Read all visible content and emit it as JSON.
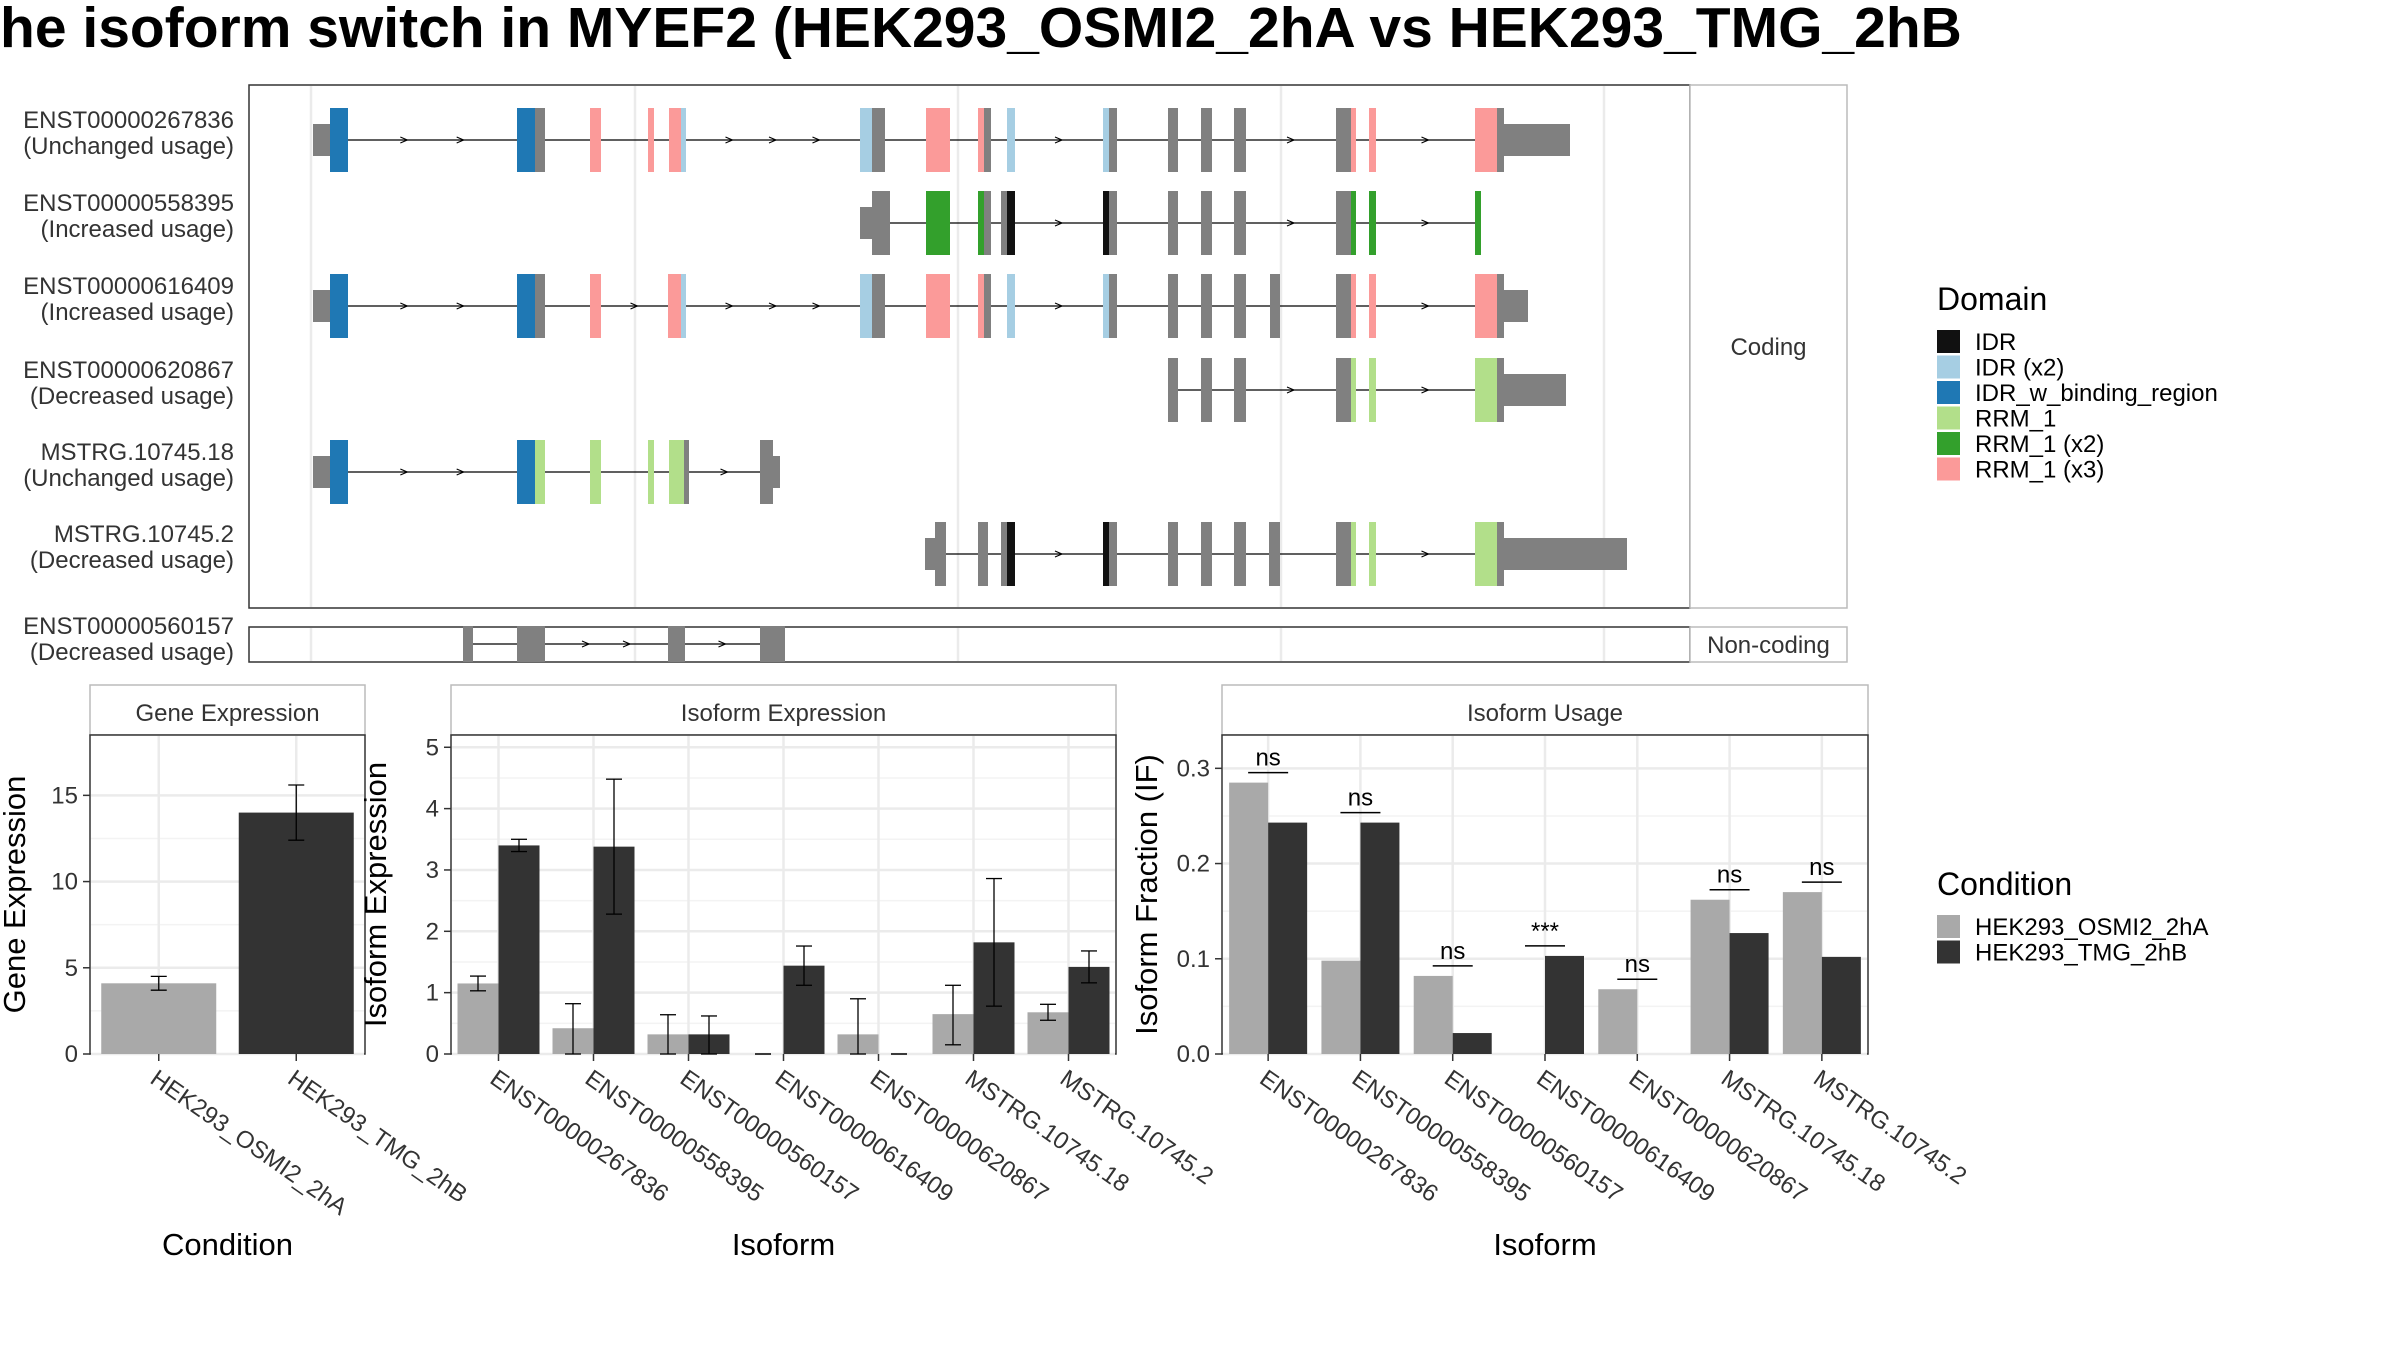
{
  "title": "he isoform switch in MYEF2 (HEK293_OSMI2_2hA vs HEK293_TMG_2hB",
  "colors": {
    "condition_a": "#a9a9a9",
    "condition_b": "#333333",
    "intron": "#000000",
    "utr": "#808080",
    "panel_border": "#333333",
    "strip_fill": "#ffffff",
    "grid": "#ebebeb"
  },
  "structure": {
    "strip_labels": [
      "Coding",
      "Non-coding"
    ],
    "domain_legend": {
      "title": "Domain",
      "items": [
        {
          "label": "IDR",
          "color": "#111111"
        },
        {
          "label": "IDR (x2)",
          "color": "#a6cee3"
        },
        {
          "label": "IDR_w_binding_region",
          "color": "#1f78b4"
        },
        {
          "label": "RRM_1",
          "color": "#b2df8a"
        },
        {
          "label": "RRM_1 (x2)",
          "color": "#33a02c"
        },
        {
          "label": "RRM_1 (x3)",
          "color": "#fb9a99"
        }
      ]
    },
    "transcripts": [
      {
        "name": "ENST00000267836",
        "usage": "(Unchanged usage)"
      },
      {
        "name": "ENST00000558395",
        "usage": "(Increased usage)"
      },
      {
        "name": "ENST00000616409",
        "usage": "(Increased usage)"
      },
      {
        "name": "ENST00000620867",
        "usage": "(Decreased usage)"
      },
      {
        "name": "MSTRG.10745.18",
        "usage": "(Unchanged usage)"
      },
      {
        "name": "MSTRG.10745.2",
        "usage": "(Decreased usage)"
      },
      {
        "name": "ENST00000560157",
        "usage": "(Decreased usage)"
      }
    ]
  },
  "condition_legend": {
    "title": "Condition",
    "items": [
      "HEK293_OSMI2_2hA",
      "HEK293_TMG_2hB"
    ]
  },
  "chart_data": [
    {
      "type": "bar",
      "title": "Gene Expression",
      "xlabel": "Condition",
      "ylabel": "Gene Expression",
      "ylim": [
        0,
        18.5
      ],
      "yticks": [
        0,
        5,
        10,
        15
      ],
      "categories": [
        "HEK293_OSMI2_2hA",
        "HEK293_TMG_2hB"
      ],
      "values": [
        4.1,
        14.0
      ],
      "errors": [
        [
          3.7,
          4.5
        ],
        [
          12.4,
          15.6
        ]
      ],
      "grid": true
    },
    {
      "type": "bar",
      "title": "Isoform Expression",
      "xlabel": "Isoform",
      "ylabel": "Isoform Expression",
      "ylim": [
        0,
        5.2
      ],
      "yticks": [
        0,
        1,
        2,
        3,
        4,
        5
      ],
      "categories": [
        "ENST00000267836",
        "ENST00000558395",
        "ENST00000560157",
        "ENST00000616409",
        "ENST00000620867",
        "MSTRG.10745.18",
        "MSTRG.10745.2"
      ],
      "series": [
        {
          "name": "HEK293_OSMI2_2hA",
          "values": [
            1.15,
            0.42,
            0.32,
            0.0,
            0.32,
            0.65,
            0.68
          ],
          "errors": [
            [
              1.03,
              1.27
            ],
            [
              0.0,
              0.82
            ],
            [
              0.0,
              0.64
            ],
            [
              0.0,
              0.0
            ],
            [
              0.0,
              0.9
            ],
            [
              0.15,
              1.12
            ],
            [
              0.55,
              0.81
            ]
          ]
        },
        {
          "name": "HEK293_TMG_2hB",
          "values": [
            3.4,
            3.38,
            0.32,
            1.44,
            0.0,
            1.82,
            1.42
          ],
          "errors": [
            [
              3.3,
              3.5
            ],
            [
              2.28,
              4.48
            ],
            [
              0.0,
              0.62
            ],
            [
              1.12,
              1.76
            ],
            [
              0.0,
              0.0
            ],
            [
              0.78,
              2.86
            ],
            [
              1.16,
              1.68
            ]
          ]
        }
      ],
      "grid": true
    },
    {
      "type": "bar",
      "title": "Isoform Usage",
      "xlabel": "Isoform",
      "ylabel": "Isoform Fraction (IF)",
      "ylim": [
        0,
        0.335
      ],
      "yticks": [
        0.0,
        0.1,
        0.2,
        0.3
      ],
      "ytick_labels": [
        "0.0",
        "0.1",
        "0.2",
        "0.3"
      ],
      "categories": [
        "ENST00000267836",
        "ENST00000558395",
        "ENST00000560157",
        "ENST00000616409",
        "ENST00000620867",
        "MSTRG.10745.18",
        "MSTRG.10745.2"
      ],
      "series": [
        {
          "name": "HEK293_OSMI2_2hA",
          "values": [
            0.285,
            0.098,
            0.082,
            0.0,
            0.068,
            0.162,
            0.17
          ]
        },
        {
          "name": "HEK293_TMG_2hB",
          "values": [
            0.243,
            0.243,
            0.022,
            0.103,
            0.0,
            0.127,
            0.102
          ]
        }
      ],
      "annotations": [
        "ns",
        "ns",
        "ns",
        "***",
        "ns",
        "ns",
        "ns"
      ],
      "grid": true
    }
  ]
}
